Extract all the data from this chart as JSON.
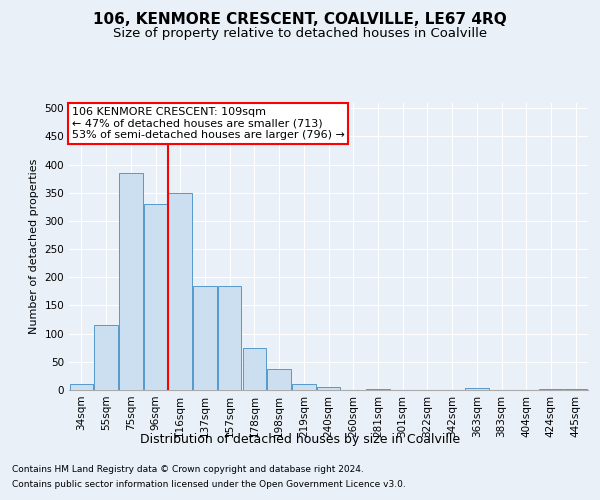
{
  "title1": "106, KENMORE CRESCENT, COALVILLE, LE67 4RQ",
  "title2": "Size of property relative to detached houses in Coalville",
  "xlabel": "Distribution of detached houses by size in Coalville",
  "ylabel": "Number of detached properties",
  "footer1": "Contains HM Land Registry data © Crown copyright and database right 2024.",
  "footer2": "Contains public sector information licensed under the Open Government Licence v3.0.",
  "categories": [
    "34sqm",
    "55sqm",
    "75sqm",
    "96sqm",
    "116sqm",
    "137sqm",
    "157sqm",
    "178sqm",
    "198sqm",
    "219sqm",
    "240sqm",
    "260sqm",
    "281sqm",
    "301sqm",
    "322sqm",
    "342sqm",
    "363sqm",
    "383sqm",
    "404sqm",
    "424sqm",
    "445sqm"
  ],
  "values": [
    10,
    115,
    385,
    330,
    350,
    185,
    185,
    75,
    37,
    10,
    6,
    0,
    1,
    0,
    0,
    0,
    3,
    0,
    0,
    2,
    2
  ],
  "bar_color": "#ccdff0",
  "bar_edge_color": "#5599cc",
  "vline_x": 3.5,
  "vline_color": "red",
  "annotation_text": "106 KENMORE CRESCENT: 109sqm\n← 47% of detached houses are smaller (713)\n53% of semi-detached houses are larger (796) →",
  "annotation_box_facecolor": "white",
  "annotation_box_edgecolor": "red",
  "ylim": [
    0,
    510
  ],
  "yticks": [
    0,
    50,
    100,
    150,
    200,
    250,
    300,
    350,
    400,
    450,
    500
  ],
  "background_color": "#eaf0f8",
  "plot_bg_color": "#eaf0f8",
  "grid_color": "white",
  "title1_fontsize": 11,
  "title2_fontsize": 9.5,
  "xlabel_fontsize": 9,
  "ylabel_fontsize": 8,
  "annotation_fontsize": 8,
  "tick_fontsize": 7.5,
  "footer_fontsize": 6.5
}
